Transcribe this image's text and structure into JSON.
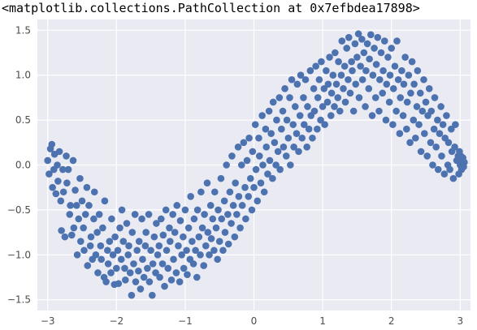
{
  "output_repr": "<matplotlib.collections.PathCollection at 0x7efbdea17898>",
  "chart_data": {
    "type": "scatter",
    "title": "",
    "xlabel": "",
    "ylabel": "",
    "xlim": [
      -3.15,
      3.15
    ],
    "ylim": [
      -1.62,
      1.62
    ],
    "xticks": [
      -3,
      -2,
      -1,
      0,
      1,
      2,
      3
    ],
    "yticks": [
      -1.5,
      -1.0,
      -0.5,
      0.0,
      0.5,
      1.0,
      1.5
    ],
    "xtick_labels": [
      "−3",
      "−2",
      "−1",
      "0",
      "1",
      "2",
      "3"
    ],
    "ytick_labels": [
      "−1.5",
      "−1.0",
      "−0.5",
      "0.0",
      "0.5",
      "1.0",
      "1.5"
    ],
    "grid": true,
    "style": {
      "background": "#eaeaf2",
      "grid_color": "#ffffff",
      "marker_color": "#4c72b0"
    },
    "points": [
      [
        -3.0,
        0.05
      ],
      [
        -2.98,
        -0.1
      ],
      [
        -2.96,
        0.18
      ],
      [
        -2.94,
        0.23
      ],
      [
        -2.93,
        -0.25
      ],
      [
        -2.91,
        -0.05
      ],
      [
        -2.9,
        0.12
      ],
      [
        -2.88,
        -0.32
      ],
      [
        -2.86,
        0.0
      ],
      [
        -2.85,
        -0.18
      ],
      [
        -2.83,
        0.15
      ],
      [
        -2.81,
        -0.4
      ],
      [
        -2.8,
        -0.73
      ],
      [
        -2.78,
        -0.05
      ],
      [
        -2.77,
        -0.3
      ],
      [
        -2.75,
        -0.8
      ],
      [
        -2.73,
        0.1
      ],
      [
        -2.72,
        -0.2
      ],
      [
        -2.7,
        -0.05
      ],
      [
        -2.68,
        -0.55
      ],
      [
        -2.67,
        -0.45
      ],
      [
        -2.65,
        -0.78
      ],
      [
        -2.63,
        0.05
      ],
      [
        -2.62,
        -0.7
      ],
      [
        -2.6,
        -0.28
      ],
      [
        -2.58,
        -0.45
      ],
      [
        -2.57,
        -1.0
      ],
      [
        -2.55,
        -0.6
      ],
      [
        -2.53,
        -0.15
      ],
      [
        -2.52,
        -0.85
      ],
      [
        -2.5,
        -0.4
      ],
      [
        -2.48,
        -0.7
      ],
      [
        -2.47,
        -0.95
      ],
      [
        -2.45,
        -0.55
      ],
      [
        -2.43,
        -0.25
      ],
      [
        -2.42,
        -1.12
      ],
      [
        -2.4,
        -0.45
      ],
      [
        -2.38,
        -0.9
      ],
      [
        -2.37,
        -0.8
      ],
      [
        -2.35,
        -1.05
      ],
      [
        -2.33,
        -0.6
      ],
      [
        -2.32,
        -0.3
      ],
      [
        -2.3,
        -1.0
      ],
      [
        -2.28,
        -0.75
      ],
      [
        -2.27,
        -1.2
      ],
      [
        -2.25,
        -0.55
      ],
      [
        -2.23,
        -0.9
      ],
      [
        -2.22,
        -1.05
      ],
      [
        -2.2,
        -0.7
      ],
      [
        -2.18,
        -1.25
      ],
      [
        -2.17,
        -0.4
      ],
      [
        -2.15,
        -1.3
      ],
      [
        -2.13,
        -0.95
      ],
      [
        -2.12,
        -1.1
      ],
      [
        -2.1,
        -0.85
      ],
      [
        -2.08,
        -1.2
      ],
      [
        -2.07,
        -0.6
      ],
      [
        -2.05,
        -1.0
      ],
      [
        -2.03,
        -1.33
      ],
      [
        -2.02,
        -0.8
      ],
      [
        -2.0,
        -1.15
      ],
      [
        -1.98,
        -0.95
      ],
      [
        -1.97,
        -1.32
      ],
      [
        -1.95,
        -0.7
      ],
      [
        -1.93,
        -1.05
      ],
      [
        -1.92,
        -0.5
      ],
      [
        -1.9,
        -0.85
      ],
      [
        -1.88,
        -1.15
      ],
      [
        -1.87,
        -1.28
      ],
      [
        -1.85,
        -0.65
      ],
      [
        -1.83,
        -1.0
      ],
      [
        -1.82,
        -0.9
      ],
      [
        -1.8,
        -1.2
      ],
      [
        -1.78,
        -1.45
      ],
      [
        -1.77,
        -0.75
      ],
      [
        -1.75,
        -1.1
      ],
      [
        -1.73,
        -0.55
      ],
      [
        -1.72,
        -1.3
      ],
      [
        -1.7,
        -0.95
      ],
      [
        -1.68,
        -1.18
      ],
      [
        -1.67,
        -0.85
      ],
      [
        -1.65,
        -1.38
      ],
      [
        -1.63,
        -0.6
      ],
      [
        -1.62,
        -1.05
      ],
      [
        -1.6,
        -1.25
      ],
      [
        -1.58,
        -0.9
      ],
      [
        -1.57,
        -0.75
      ],
      [
        -1.55,
        -1.15
      ],
      [
        -1.53,
        -0.55
      ],
      [
        -1.52,
        -1.3
      ],
      [
        -1.5,
        -0.95
      ],
      [
        -1.48,
        -1.45
      ],
      [
        -1.47,
        -1.1
      ],
      [
        -1.45,
        -0.8
      ],
      [
        -1.43,
        -1.2
      ],
      [
        -1.42,
        -0.65
      ],
      [
        -1.4,
        -1.0
      ],
      [
        -1.38,
        -0.9
      ],
      [
        -1.37,
        -1.25
      ],
      [
        -1.35,
        -0.6
      ],
      [
        -1.33,
        -1.1
      ],
      [
        -1.32,
        -0.78
      ],
      [
        -1.3,
        -1.35
      ],
      [
        -1.28,
        -0.5
      ],
      [
        -1.27,
        -0.95
      ],
      [
        -1.25,
        -1.15
      ],
      [
        -1.23,
        -0.7
      ],
      [
        -1.22,
        -0.85
      ],
      [
        -1.2,
        -1.28
      ],
      [
        -1.18,
        -0.55
      ],
      [
        -1.17,
        -1.05
      ],
      [
        -1.15,
        -0.75
      ],
      [
        -1.13,
        -1.2
      ],
      [
        -1.12,
        -0.45
      ],
      [
        -1.1,
        -0.9
      ],
      [
        -1.08,
        -1.3
      ],
      [
        -1.07,
        -0.62
      ],
      [
        -1.05,
        -1.0
      ],
      [
        -1.03,
        -0.8
      ],
      [
        -1.02,
        -1.15
      ],
      [
        -1.0,
        -0.5
      ],
      [
        -0.98,
        -0.95
      ],
      [
        -0.97,
        -1.22
      ],
      [
        -0.95,
        -0.7
      ],
      [
        -0.93,
        -1.05
      ],
      [
        -0.92,
        -0.35
      ],
      [
        -0.9,
        -0.85
      ],
      [
        -0.88,
        -1.1
      ],
      [
        -0.87,
        -0.6
      ],
      [
        -0.85,
        -0.95
      ],
      [
        -0.83,
        -1.25
      ],
      [
        -0.82,
        -0.5
      ],
      [
        -0.8,
        -0.8
      ],
      [
        -0.78,
        -1.0
      ],
      [
        -0.77,
        -0.3
      ],
      [
        -0.75,
        -0.7
      ],
      [
        -0.73,
        -1.12
      ],
      [
        -0.72,
        -0.55
      ],
      [
        -0.7,
        -0.9
      ],
      [
        -0.68,
        -0.2
      ],
      [
        -0.67,
        -0.75
      ],
      [
        -0.65,
        -1.0
      ],
      [
        -0.63,
        -0.45
      ],
      [
        -0.62,
        -0.82
      ],
      [
        -0.6,
        -0.6
      ],
      [
        -0.58,
        -0.95
      ],
      [
        -0.57,
        -0.3
      ],
      [
        -0.55,
        -0.7
      ],
      [
        -0.53,
        -1.05
      ],
      [
        -0.52,
        -0.5
      ],
      [
        -0.5,
        -0.85
      ],
      [
        -0.48,
        -0.15
      ],
      [
        -0.47,
        -0.6
      ],
      [
        -0.45,
        -0.95
      ],
      [
        -0.43,
        -0.4
      ],
      [
        -0.42,
        -0.75
      ],
      [
        -0.4,
        0.0
      ],
      [
        -0.38,
        -0.55
      ],
      [
        -0.37,
        -0.88
      ],
      [
        -0.35,
        -0.3
      ],
      [
        -0.33,
        -0.65
      ],
      [
        -0.32,
        0.1
      ],
      [
        -0.3,
        -0.45
      ],
      [
        -0.28,
        -0.8
      ],
      [
        -0.27,
        -0.2
      ],
      [
        -0.25,
        -0.55
      ],
      [
        -0.23,
        0.2
      ],
      [
        -0.22,
        -0.35
      ],
      [
        -0.2,
        -0.7
      ],
      [
        -0.18,
        0.0
      ],
      [
        -0.17,
        -0.45
      ],
      [
        -0.15,
        0.25
      ],
      [
        -0.13,
        -0.25
      ],
      [
        -0.12,
        -0.6
      ],
      [
        -0.1,
        0.05
      ],
      [
        -0.08,
        -0.35
      ],
      [
        -0.07,
        0.3
      ],
      [
        -0.05,
        -0.15
      ],
      [
        -0.03,
        -0.5
      ],
      [
        -0.02,
        0.15
      ],
      [
        0.0,
        -0.25
      ],
      [
        0.02,
        0.45
      ],
      [
        0.03,
        -0.05
      ],
      [
        0.05,
        -0.4
      ],
      [
        0.07,
        0.3
      ],
      [
        0.08,
        0.1
      ],
      [
        0.1,
        -0.2
      ],
      [
        0.12,
        0.55
      ],
      [
        0.13,
        0.0
      ],
      [
        0.15,
        -0.3
      ],
      [
        0.17,
        0.4
      ],
      [
        0.18,
        0.2
      ],
      [
        0.2,
        -0.1
      ],
      [
        0.22,
        0.6
      ],
      [
        0.23,
        0.05
      ],
      [
        0.25,
        0.35
      ],
      [
        0.27,
        -0.15
      ],
      [
        0.28,
        0.7
      ],
      [
        0.3,
        0.25
      ],
      [
        0.32,
        0.0
      ],
      [
        0.33,
        0.5
      ],
      [
        0.35,
        0.15
      ],
      [
        0.37,
        0.75
      ],
      [
        0.38,
        -0.05
      ],
      [
        0.4,
        0.4
      ],
      [
        0.42,
        0.6
      ],
      [
        0.43,
        0.2
      ],
      [
        0.45,
        0.85
      ],
      [
        0.47,
        0.1
      ],
      [
        0.48,
        0.5
      ],
      [
        0.5,
        0.3
      ],
      [
        0.52,
        0.75
      ],
      [
        0.53,
        0.0
      ],
      [
        0.55,
        0.95
      ],
      [
        0.57,
        0.45
      ],
      [
        0.58,
        0.2
      ],
      [
        0.6,
        0.65
      ],
      [
        0.62,
        0.35
      ],
      [
        0.63,
        0.9
      ],
      [
        0.65,
        0.15
      ],
      [
        0.67,
        0.55
      ],
      [
        0.68,
        1.0
      ],
      [
        0.7,
        0.3
      ],
      [
        0.72,
        0.75
      ],
      [
        0.73,
        0.45
      ],
      [
        0.75,
        0.95
      ],
      [
        0.77,
        0.2
      ],
      [
        0.78,
        0.65
      ],
      [
        0.8,
        0.4
      ],
      [
        0.82,
        1.05
      ],
      [
        0.83,
        0.55
      ],
      [
        0.85,
        0.3
      ],
      [
        0.87,
        0.85
      ],
      [
        0.88,
        0.6
      ],
      [
        0.9,
        1.1
      ],
      [
        0.92,
        0.4
      ],
      [
        0.93,
        0.75
      ],
      [
        0.95,
        0.95
      ],
      [
        0.97,
        0.5
      ],
      [
        0.98,
        1.15
      ],
      [
        1.0,
        0.65
      ],
      [
        1.02,
        0.85
      ],
      [
        1.03,
        0.45
      ],
      [
        1.05,
        1.05
      ],
      [
        1.07,
        0.7
      ],
      [
        1.08,
        0.9
      ],
      [
        1.1,
        1.2
      ],
      [
        1.12,
        0.55
      ],
      [
        1.13,
        0.8
      ],
      [
        1.15,
        1.0
      ],
      [
        1.17,
        0.65
      ],
      [
        1.18,
        1.25
      ],
      [
        1.2,
        0.9
      ],
      [
        1.22,
        0.75
      ],
      [
        1.23,
        1.15
      ],
      [
        1.25,
        0.6
      ],
      [
        1.27,
        1.0
      ],
      [
        1.28,
        1.38
      ],
      [
        1.3,
        0.85
      ],
      [
        1.32,
        1.1
      ],
      [
        1.33,
        0.7
      ],
      [
        1.35,
        1.3
      ],
      [
        1.37,
        0.95
      ],
      [
        1.38,
        1.42
      ],
      [
        1.4,
        0.8
      ],
      [
        1.42,
        1.15
      ],
      [
        1.43,
        1.05
      ],
      [
        1.45,
        0.6
      ],
      [
        1.47,
        1.35
      ],
      [
        1.48,
        0.9
      ],
      [
        1.5,
        1.2
      ],
      [
        1.52,
        1.46
      ],
      [
        1.53,
        0.75
      ],
      [
        1.55,
        1.1
      ],
      [
        1.57,
        1.4
      ],
      [
        1.58,
        0.95
      ],
      [
        1.6,
        1.25
      ],
      [
        1.62,
        0.65
      ],
      [
        1.63,
        1.05
      ],
      [
        1.65,
        1.35
      ],
      [
        1.67,
        0.85
      ],
      [
        1.68,
        1.18
      ],
      [
        1.7,
        1.45
      ],
      [
        1.72,
        0.55
      ],
      [
        1.73,
        1.0
      ],
      [
        1.75,
        1.3
      ],
      [
        1.77,
        0.75
      ],
      [
        1.78,
        1.12
      ],
      [
        1.8,
        1.42
      ],
      [
        1.82,
        0.6
      ],
      [
        1.83,
        0.95
      ],
      [
        1.85,
        1.25
      ],
      [
        1.87,
        0.8
      ],
      [
        1.88,
        1.05
      ],
      [
        1.9,
        1.38
      ],
      [
        1.92,
        0.5
      ],
      [
        1.93,
        0.9
      ],
      [
        1.95,
        1.2
      ],
      [
        1.97,
        0.7
      ],
      [
        1.98,
        1.0
      ],
      [
        2.0,
        1.3
      ],
      [
        2.02,
        0.45
      ],
      [
        2.03,
        0.85
      ],
      [
        2.05,
        1.1
      ],
      [
        2.07,
        0.6
      ],
      [
        2.08,
        1.38
      ],
      [
        2.1,
        0.95
      ],
      [
        2.12,
        0.35
      ],
      [
        2.13,
        0.75
      ],
      [
        2.15,
        1.05
      ],
      [
        2.17,
        0.55
      ],
      [
        2.18,
        0.9
      ],
      [
        2.2,
        1.2
      ],
      [
        2.22,
        0.4
      ],
      [
        2.23,
        0.7
      ],
      [
        2.25,
        1.0
      ],
      [
        2.27,
        0.25
      ],
      [
        2.28,
        0.8
      ],
      [
        2.3,
        1.15
      ],
      [
        2.32,
        0.5
      ],
      [
        2.33,
        0.9
      ],
      [
        2.35,
        0.3
      ],
      [
        2.37,
        0.65
      ],
      [
        2.38,
        1.05
      ],
      [
        2.4,
        0.45
      ],
      [
        2.42,
        0.8
      ],
      [
        2.43,
        0.15
      ],
      [
        2.45,
        0.6
      ],
      [
        2.47,
        0.95
      ],
      [
        2.48,
        0.35
      ],
      [
        2.5,
        0.7
      ],
      [
        2.52,
        0.1
      ],
      [
        2.53,
        0.55
      ],
      [
        2.55,
        0.85
      ],
      [
        2.57,
        0.25
      ],
      [
        2.58,
        0.6
      ],
      [
        2.6,
        0.0
      ],
      [
        2.62,
        0.4
      ],
      [
        2.63,
        0.75
      ],
      [
        2.65,
        0.2
      ],
      [
        2.67,
        0.5
      ],
      [
        2.68,
        -0.05
      ],
      [
        2.7,
        0.35
      ],
      [
        2.72,
        0.65
      ],
      [
        2.73,
        0.1
      ],
      [
        2.75,
        0.45
      ],
      [
        2.77,
        -0.1
      ],
      [
        2.78,
        0.3
      ],
      [
        2.8,
        0.55
      ],
      [
        2.82,
        0.0
      ],
      [
        2.83,
        0.25
      ],
      [
        2.85,
        -0.05
      ],
      [
        2.87,
        0.4
      ],
      [
        2.88,
        0.15
      ],
      [
        2.9,
        -0.15
      ],
      [
        2.92,
        0.2
      ],
      [
        2.93,
        0.45
      ],
      [
        2.95,
        0.05
      ],
      [
        2.97,
        0.1
      ],
      [
        2.98,
        -0.1
      ],
      [
        2.99,
        0.15
      ],
      [
        3.0,
        0.0
      ],
      [
        3.01,
        0.1
      ],
      [
        3.02,
        -0.05
      ],
      [
        3.03,
        0.05
      ],
      [
        3.04,
        0.08
      ],
      [
        3.05,
        -0.02
      ],
      [
        3.06,
        0.03
      ]
    ]
  }
}
